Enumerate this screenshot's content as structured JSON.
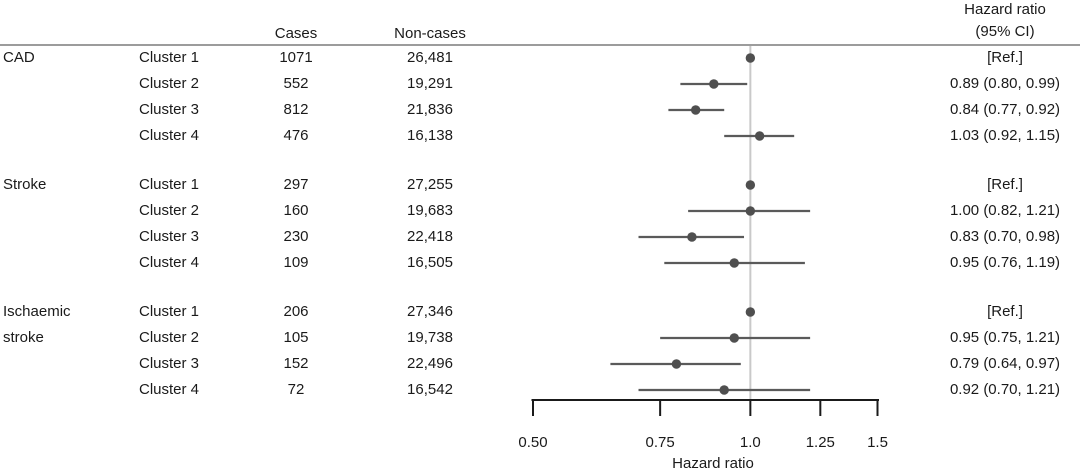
{
  "figure": {
    "columns": {
      "cases": "Cases",
      "non_cases": "Non-cases",
      "hazard_ratio_line1": "Hazard ratio",
      "hazard_ratio_line2": "(95% CI)"
    }
  },
  "chart_data": {
    "type": "scatter",
    "subtype": "forest-plot",
    "title": "",
    "xlabel": "Hazard ratio",
    "xscale": "log",
    "xlim": [
      0.5,
      1.5
    ],
    "xticks": [
      0.5,
      0.75,
      1.0,
      1.25,
      1.5
    ],
    "xtick_labels": [
      "0.50",
      "0.75",
      "1.0",
      "1.25",
      "1.5"
    ],
    "reference_line_x": 1.0,
    "legend": "none",
    "grid": false,
    "groups": [
      {
        "outcome": "CAD",
        "outcome_line2": "",
        "rows": [
          {
            "cluster": "Cluster 1",
            "cases": "1071",
            "non_cases": "26,481",
            "hr_label": "[Ref.]",
            "hr": 1.0,
            "ci_low": null,
            "ci_high": null
          },
          {
            "cluster": "Cluster 2",
            "cases": "552",
            "non_cases": "19,291",
            "hr_label": "0.89 (0.80, 0.99)",
            "hr": 0.89,
            "ci_low": 0.8,
            "ci_high": 0.99
          },
          {
            "cluster": "Cluster 3",
            "cases": "812",
            "non_cases": "21,836",
            "hr_label": "0.84 (0.77, 0.92)",
            "hr": 0.84,
            "ci_low": 0.77,
            "ci_high": 0.92
          },
          {
            "cluster": "Cluster 4",
            "cases": "476",
            "non_cases": "16,138",
            "hr_label": "1.03 (0.92, 1.15)",
            "hr": 1.03,
            "ci_low": 0.92,
            "ci_high": 1.15
          }
        ]
      },
      {
        "outcome": "Stroke",
        "outcome_line2": "",
        "rows": [
          {
            "cluster": "Cluster 1",
            "cases": "297",
            "non_cases": "27,255",
            "hr_label": "[Ref.]",
            "hr": 1.0,
            "ci_low": null,
            "ci_high": null
          },
          {
            "cluster": "Cluster 2",
            "cases": "160",
            "non_cases": "19,683",
            "hr_label": "1.00 (0.82, 1.21)",
            "hr": 1.0,
            "ci_low": 0.82,
            "ci_high": 1.21
          },
          {
            "cluster": "Cluster 3",
            "cases": "230",
            "non_cases": "22,418",
            "hr_label": "0.83 (0.70, 0.98)",
            "hr": 0.83,
            "ci_low": 0.7,
            "ci_high": 0.98
          },
          {
            "cluster": "Cluster 4",
            "cases": "109",
            "non_cases": "16,505",
            "hr_label": "0.95 (0.76, 1.19)",
            "hr": 0.95,
            "ci_low": 0.76,
            "ci_high": 1.19
          }
        ]
      },
      {
        "outcome": "Ischaemic",
        "outcome_line2": "stroke",
        "rows": [
          {
            "cluster": "Cluster 1",
            "cases": "206",
            "non_cases": "27,346",
            "hr_label": "[Ref.]",
            "hr": 1.0,
            "ci_low": null,
            "ci_high": null
          },
          {
            "cluster": "Cluster 2",
            "cases": "105",
            "non_cases": "19,738",
            "hr_label": "0.95 (0.75, 1.21)",
            "hr": 0.95,
            "ci_low": 0.75,
            "ci_high": 1.21
          },
          {
            "cluster": "Cluster 3",
            "cases": "152",
            "non_cases": "22,496",
            "hr_label": "0.79 (0.64, 0.97)",
            "hr": 0.79,
            "ci_low": 0.64,
            "ci_high": 0.97
          },
          {
            "cluster": "Cluster 4",
            "cases": "72",
            "non_cases": "16,542",
            "hr_label": "0.92 (0.70, 1.21)",
            "hr": 0.92,
            "ci_low": 0.7,
            "ci_high": 1.21
          }
        ]
      }
    ],
    "colors": {
      "marker": "#4f4f4f",
      "ci_line": "#5a5a5a",
      "reference_line": "#c9c9c9",
      "axis": "#1a1a1a",
      "separator_line": "#9c9c9c",
      "text": "#1a1a1a"
    }
  }
}
